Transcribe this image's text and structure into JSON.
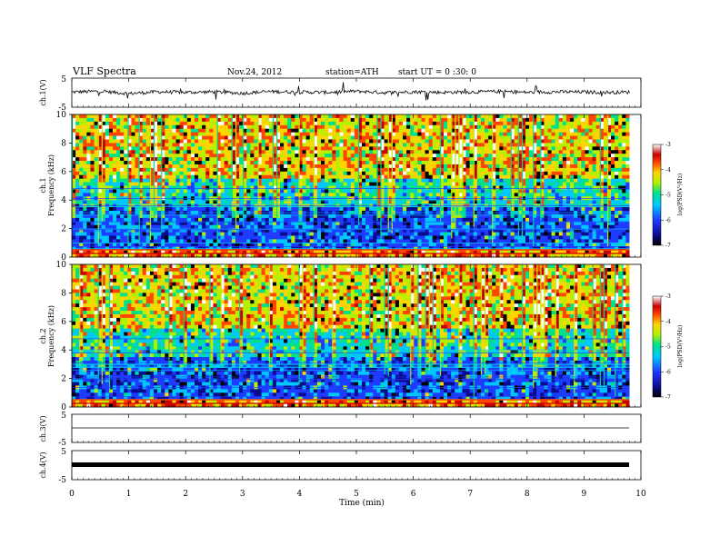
{
  "header": {
    "title": "VLF  Spectra",
    "date": "Nov.24, 2012",
    "station": "station=ATH",
    "start": "start  UT =   0 :30: 0"
  },
  "chart_data": [
    {
      "type": "line",
      "name": "ch1-waveform",
      "ylabel": "ch.1(V)",
      "ylim": [
        -5,
        5
      ],
      "yticks": [
        "5",
        "-5"
      ],
      "x": [
        0,
        0.5,
        1.0,
        1.5,
        2.0,
        2.5,
        3.0,
        3.5,
        4.0,
        4.5,
        5.0,
        5.5,
        6.0,
        6.5,
        7.0,
        7.5,
        8.0,
        8.5,
        9.0,
        9.5,
        9.8
      ],
      "values": [
        0.2,
        0.5,
        -0.3,
        0.3,
        0.1,
        0.3,
        -0.2,
        0.4,
        0.2,
        0.1,
        0.5,
        0.0,
        0.3,
        0.1,
        0.2,
        0.4,
        0.1,
        0.3,
        0.2,
        0.1,
        0.2
      ]
    },
    {
      "type": "heatmap",
      "name": "ch1-spectrogram",
      "ylabel": "ch.1\nFrequency  (kHz)",
      "ylim": [
        0,
        10
      ],
      "yticks": [
        "0",
        "2",
        "4",
        "6",
        "8",
        "10"
      ],
      "x_range": [
        0,
        9.8
      ],
      "colorbar": {
        "label": "log(PSD(V²/Hz)",
        "range": [
          -7,
          -3
        ],
        "ticks": [
          "-3",
          "-4",
          "-5",
          "-6",
          "-7"
        ]
      }
    },
    {
      "type": "heatmap",
      "name": "ch2-spectrogram",
      "ylabel": "ch.2\nFrequency  (kHz)",
      "ylim": [
        0,
        10
      ],
      "yticks": [
        "0",
        "2",
        "4",
        "6",
        "8",
        "10"
      ],
      "x_range": [
        0,
        9.8
      ],
      "colorbar": {
        "label": "log(PSD(V²/Hz)",
        "range": [
          -7,
          -3
        ],
        "ticks": [
          "-3",
          "-4",
          "-5",
          "-6",
          "-7"
        ]
      }
    },
    {
      "type": "line",
      "name": "ch3-waveform",
      "ylabel": "ch.3(V)",
      "ylim": [
        -5,
        5
      ],
      "yticks": [
        "5",
        "-5"
      ],
      "x": [
        0,
        9.8
      ],
      "values": [
        0,
        0
      ]
    },
    {
      "type": "line",
      "name": "ch4-waveform",
      "ylabel": "ch.4(V)",
      "ylim": [
        -5,
        5
      ],
      "yticks": [
        "5",
        "-5"
      ],
      "x": [
        0,
        9.8
      ],
      "values": [
        0,
        0
      ]
    }
  ],
  "xaxis": {
    "label": "Time  (min)",
    "range": [
      0,
      10
    ],
    "ticks": [
      "0",
      "1",
      "2",
      "3",
      "4",
      "5",
      "6",
      "7",
      "8",
      "9",
      "10"
    ]
  },
  "colors": {
    "cmap": [
      "#000000",
      "#0a0a8c",
      "#1e3cff",
      "#00c8ff",
      "#00e08a",
      "#b4f000",
      "#ffd400",
      "#ff4500",
      "#c80000",
      "#ffffff"
    ]
  }
}
